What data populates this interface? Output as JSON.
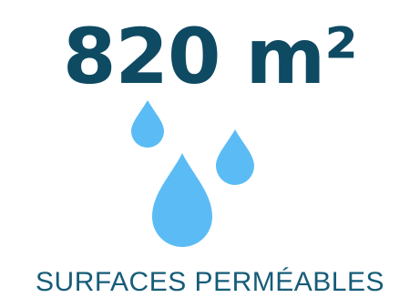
{
  "stat": {
    "value": "820 m²",
    "label": "SURFACES PERMÉABLES"
  },
  "icon": {
    "name": "water-drops-icon",
    "color": "#5bbcf5"
  },
  "colors": {
    "value_text": "#0f4a63",
    "label_text": "#165c78"
  }
}
